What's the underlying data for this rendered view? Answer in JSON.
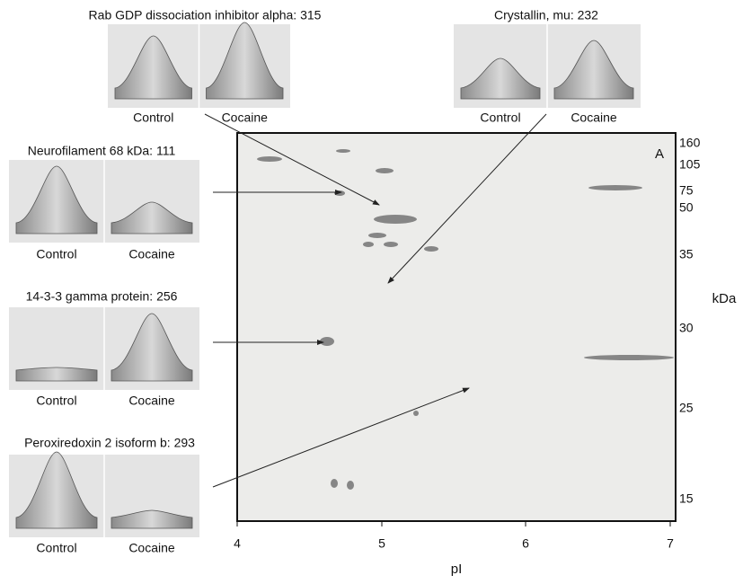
{
  "panels": [
    {
      "title": "Rab GDP dissociation inhibitor alpha: 315",
      "labels": [
        "Control",
        "Cocaine"
      ]
    },
    {
      "title": "Crystallin, mu: 232",
      "labels": [
        "Control",
        "Cocaine"
      ]
    },
    {
      "title": "Neurofilament 68 kDa: 111",
      "labels": [
        "Control",
        "Cocaine"
      ]
    },
    {
      "title": "14-3-3 gamma protein: 256",
      "labels": [
        "Control",
        "Cocaine"
      ]
    },
    {
      "title": "Peroxiredoxin 2 isoform b: 293",
      "labels": [
        "Control",
        "Cocaine"
      ]
    }
  ],
  "gel": {
    "label": "A",
    "x_axis": {
      "label": "pI",
      "ticks": [
        "4",
        "5",
        "6",
        "7"
      ]
    },
    "y_axis": {
      "label": "kDa",
      "ticks": [
        "160",
        "105",
        "75",
        "50",
        "35",
        "30",
        "25",
        "15"
      ]
    }
  }
}
